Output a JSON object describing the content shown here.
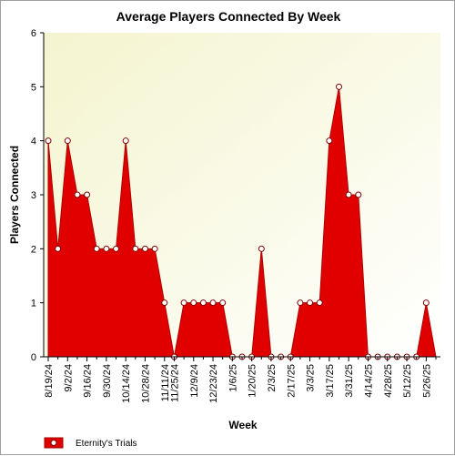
{
  "chart_data": {
    "type": "area",
    "title": "Average Players Connected By Week",
    "xlabel": "Week",
    "ylabel": "Players Connected",
    "ylim": [
      0,
      6
    ],
    "yticks": [
      0,
      1,
      2,
      3,
      4,
      5,
      6
    ],
    "x": [
      "8/19/24",
      "8/26/24",
      "9/2/24",
      "9/9/24",
      "9/16/24",
      "9/23/24",
      "9/30/24",
      "10/7/24",
      "10/14/24",
      "10/21/24",
      "10/28/24",
      "11/4/24",
      "11/11/24",
      "11/25/24",
      "12/2/24",
      "12/9/24",
      "12/16/24",
      "12/23/24",
      "12/30/24",
      "1/6/25",
      "1/13/25",
      "1/20/25",
      "1/27/25",
      "2/3/25",
      "2/10/25",
      "2/17/25",
      "2/24/25",
      "3/3/25",
      "3/10/25",
      "3/17/25",
      "3/24/25",
      "3/31/25",
      "4/7/25",
      "4/14/25",
      "4/21/25",
      "4/28/25",
      "5/5/25",
      "5/12/25",
      "5/19/25",
      "5/26/25",
      "6/2/25"
    ],
    "xtick_labels": [
      "8/19/24",
      "9/2/24",
      "9/16/24",
      "9/30/24",
      "10/14/24",
      "10/28/24",
      "11/11/24",
      "11/25/24",
      "12/9/24",
      "12/23/24",
      "1/6/25",
      "1/20/25",
      "2/3/25",
      "2/17/25",
      "3/3/25",
      "3/17/25",
      "3/31/25",
      "4/14/25",
      "4/28/25",
      "5/12/25",
      "5/26/25"
    ],
    "series": [
      {
        "name": "Eternity's Trials",
        "color": "#e00000",
        "values": [
          4,
          2,
          4,
          3,
          3,
          2,
          2,
          2,
          4,
          2,
          2,
          2,
          1,
          0,
          1,
          1,
          1,
          1,
          1,
          0,
          0,
          0,
          2,
          0,
          0,
          0,
          1,
          1,
          1,
          4,
          5,
          3,
          3,
          0,
          0,
          0,
          0,
          0,
          0,
          1,
          0
        ],
        "markers": [
          1,
          1,
          1,
          1,
          1,
          1,
          1,
          1,
          1,
          1,
          1,
          1,
          1,
          1,
          1,
          1,
          1,
          1,
          1,
          1,
          1,
          1,
          1,
          1,
          1,
          1,
          1,
          1,
          1,
          1,
          1,
          1,
          1,
          1,
          1,
          1,
          1,
          1,
          1,
          1,
          0
        ]
      }
    ],
    "grid": false,
    "legend_position": "bottom-left"
  }
}
